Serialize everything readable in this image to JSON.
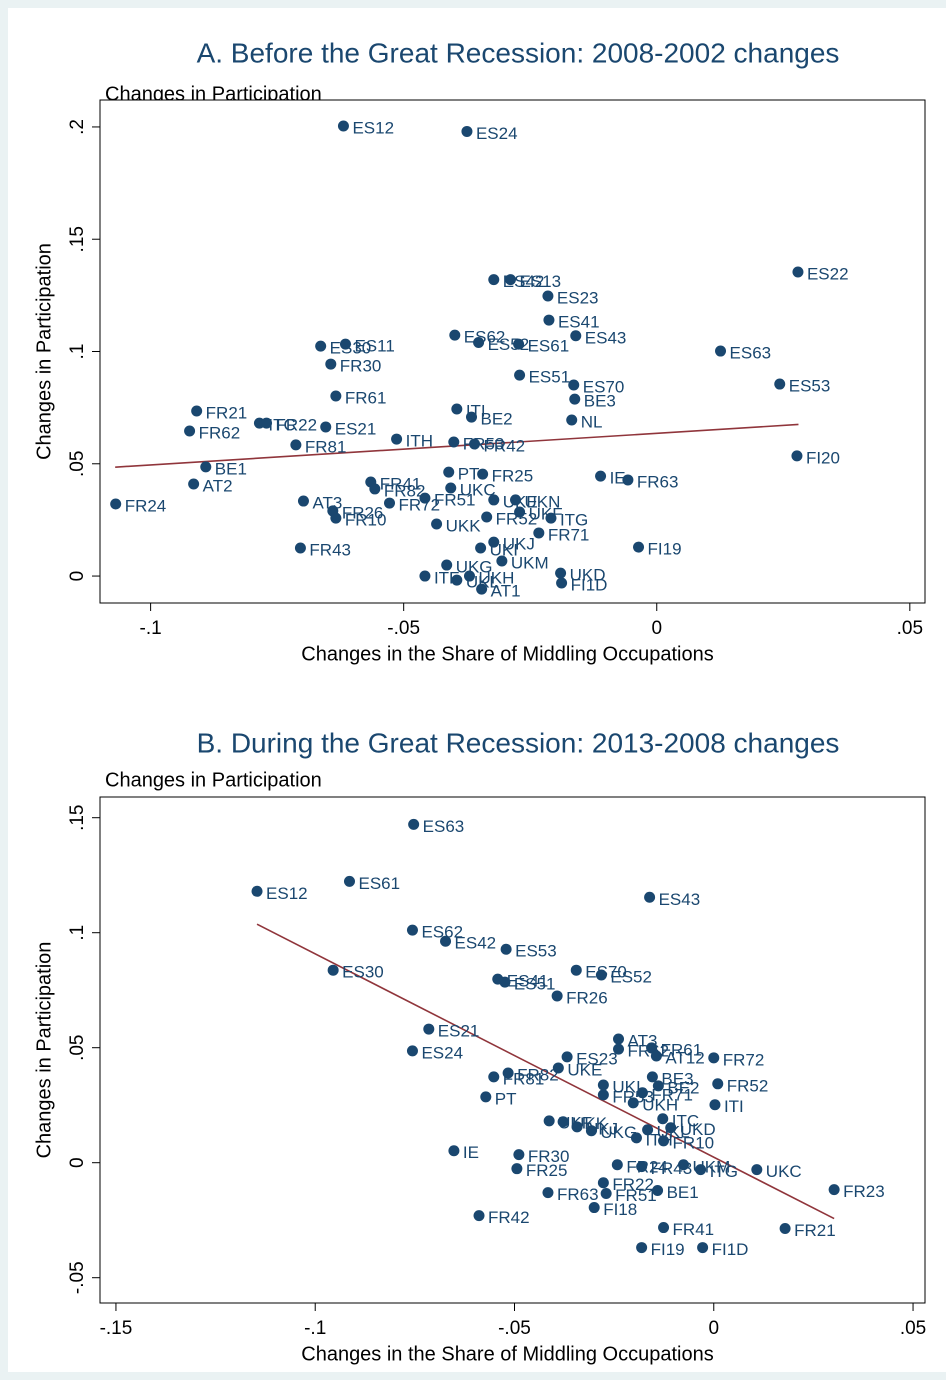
{
  "chart_data": [
    {
      "type": "scatter",
      "title": "A. Before the Great Recession: 2008-2002 changes",
      "subtitle": "Changes in Participation",
      "x_label": "Changes in the Share of Middling Occupations",
      "y_label": "Changes in Participation",
      "color": "#1a476f",
      "labels": [
        "ES12",
        "ES24",
        "ES22",
        "ES42",
        "ES13",
        "ES23",
        "ES41",
        "ES43",
        "ES62",
        "ES52",
        "ES61",
        "ES63",
        "ES30",
        "ES11",
        "FR30",
        "ES51",
        "ES70",
        "ES53",
        "BE3",
        "FR61",
        "FR21",
        "ITI",
        "BE2",
        "NL",
        "FR62",
        "ITC",
        "FR22",
        "ES21",
        "ITH",
        "FR81",
        "FR53",
        "FR42",
        "FI20",
        "BE1",
        "PT",
        "FR25",
        "IE",
        "FR63",
        "AT2",
        "FR41",
        "FR82",
        "UKC",
        "FR24",
        "AT3",
        "FR72",
        "FR51",
        "UKE",
        "UKN",
        "FR26",
        "FR10",
        "UKF",
        "FR52",
        "ITG",
        "UKK",
        "FR71",
        "UKJ",
        "UKI",
        "FR43",
        "FI19",
        "UKM",
        "UKG",
        "UKD",
        "ITF",
        "UKL",
        "UKH",
        "FI1D",
        "AT1"
      ],
      "x": [
        -0.0619,
        -0.0375,
        0.0279,
        -0.0322,
        -0.0289,
        -0.0215,
        -0.0213,
        -0.016,
        -0.0399,
        -0.0352,
        -0.0273,
        0.0126,
        -0.0664,
        -0.0615,
        -0.0644,
        -0.0271,
        -0.0164,
        0.0243,
        -0.0162,
        -0.0634,
        -0.0909,
        -0.0395,
        -0.0366,
        -0.0168,
        -0.0923,
        -0.0785,
        -0.0771,
        -0.0654,
        -0.0514,
        -0.0713,
        -0.0401,
        -0.036,
        0.0277,
        -0.0891,
        -0.0411,
        -0.0344,
        -0.0111,
        -0.0057,
        -0.0915,
        -0.0565,
        -0.0557,
        -0.0407,
        -0.1069,
        -0.0698,
        -0.0528,
        -0.0458,
        -0.0322,
        -0.0279,
        -0.064,
        -0.0634,
        -0.0271,
        -0.0336,
        -0.0209,
        -0.0435,
        -0.0233,
        -0.0322,
        -0.0348,
        -0.0704,
        -0.0036,
        -0.0306,
        -0.0415,
        -0.019,
        -0.0458,
        -0.0395,
        -0.037,
        -0.0188,
        -0.0346
      ],
      "values": [
        0.2004,
        0.198,
        0.1354,
        0.132,
        0.132,
        0.1247,
        0.114,
        0.107,
        0.1073,
        0.104,
        0.1033,
        0.1002,
        0.1024,
        0.1033,
        0.0944,
        0.0895,
        0.0851,
        0.0855,
        0.0788,
        0.0802,
        0.0735,
        0.0744,
        0.0708,
        0.0695,
        0.0646,
        0.0681,
        0.0681,
        0.0664,
        0.061,
        0.0584,
        0.0597,
        0.0588,
        0.0535,
        0.0486,
        0.0463,
        0.0454,
        0.0445,
        0.0428,
        0.041,
        0.0419,
        0.0388,
        0.0392,
        0.0321,
        0.0334,
        0.0325,
        0.0347,
        0.0339,
        0.0339,
        0.029,
        0.0258,
        0.0285,
        0.0263,
        0.0258,
        0.0232,
        0.0192,
        0.0151,
        0.0125,
        0.0125,
        0.0129,
        0.0067,
        0.0049,
        0.0013,
        0,
        -0.0018,
        0,
        -0.0031,
        -0.0058
      ],
      "fit_line": {
        "x": [
          -0.107,
          0.028
        ],
        "values": [
          0.0485,
          0.0675
        ],
        "color": "#90353b"
      },
      "xlim": [
        -0.11,
        0.053
      ],
      "ylim": [
        -0.012,
        0.212
      ],
      "xticks": [
        {
          "value": -0.1,
          "label": "-.1"
        },
        {
          "value": -0.05,
          "label": "-.05"
        },
        0,
        {
          "value": 0.05,
          "label": ".05"
        }
      ],
      "yticks": [
        0,
        {
          "value": 0.05,
          "label": ".05"
        },
        {
          "value": 0.1,
          "label": ".1"
        },
        {
          "value": 0.15,
          "label": ".15"
        },
        {
          "value": 0.2,
          "label": ".2"
        }
      ]
    },
    {
      "type": "scatter",
      "title": "B. During the Great Recession: 2013-2008 changes",
      "subtitle": "Changes in Participation",
      "x_label": "Changes in the Share of Middling Occupations",
      "y_label": "Changes in Participation",
      "color": "#1a476f",
      "labels": [
        "ES63",
        "ES12",
        "ES61",
        "ES43",
        "ES62",
        "ES42",
        "ES53",
        "ES30",
        "ES70",
        "ES52",
        "ES41",
        "ES51",
        "FR26",
        "ES21",
        "AT3",
        "FR61",
        "FR62",
        "AT12",
        "ES24",
        "FR72",
        "ES23",
        "UKE",
        "FR81",
        "FR82",
        "BE3",
        "FR52",
        "UKI",
        "BE2",
        "FR71",
        "FR53",
        "UKH",
        "ITI",
        "PT",
        "ITC",
        "UKF",
        "UKK",
        "UKJ",
        "UKD",
        "UKL",
        "UKG",
        "FR10",
        "ITH",
        "IE",
        "FR30",
        "FR24",
        "UKM",
        "FR43",
        "ITG",
        "UKC",
        "FR25",
        "FR22",
        "FR23",
        "BE1",
        "FR63",
        "FR51",
        "FI18",
        "FR42",
        "FR41",
        "FR21",
        "FI19",
        "FI1D"
      ],
      "x": [
        -0.0753,
        -0.1146,
        -0.0914,
        -0.0161,
        -0.0756,
        -0.0673,
        -0.0521,
        -0.0955,
        -0.0345,
        -0.0282,
        -0.0542,
        -0.0524,
        -0.0393,
        -0.0715,
        -0.0239,
        -0.0156,
        -0.0239,
        -0.0144,
        -0.0756,
        0,
        -0.0368,
        -0.039,
        -0.0552,
        -0.0516,
        -0.0154,
        0.001,
        -0.0277,
        -0.0139,
        -0.0179,
        -0.0277,
        -0.0202,
        0.0003,
        -0.0572,
        -0.0128,
        -0.0413,
        -0.0378,
        -0.0343,
        -0.0108,
        -0.0166,
        -0.0307,
        -0.0126,
        -0.0194,
        -0.0652,
        -0.0489,
        -0.0242,
        -0.0076,
        -0.0181,
        -0.0033,
        0.0108,
        -0.0494,
        -0.0277,
        0.0302,
        -0.0141,
        -0.0416,
        -0.027,
        -0.03,
        -0.0589,
        -0.0126,
        0.0179,
        -0.0181,
        -0.0028
      ],
      "values": [
        0.1471,
        0.118,
        0.1223,
        0.1154,
        0.1011,
        0.0963,
        0.0928,
        0.0837,
        0.0837,
        0.0816,
        0.0798,
        0.0785,
        0.0725,
        0.0581,
        0.0538,
        0.0499,
        0.0494,
        0.0464,
        0.0486,
        0.0456,
        0.046,
        0.0412,
        0.0373,
        0.039,
        0.0373,
        0.0343,
        0.0338,
        0.0334,
        0.0304,
        0.0295,
        0.026,
        0.0252,
        0.0286,
        0.0191,
        0.0182,
        0.0178,
        0.0156,
        0.0152,
        0.0143,
        0.0139,
        0.0095,
        0.0108,
        0.0052,
        0.0035,
        -0.0009,
        -0.0009,
        -0.0017,
        -0.003,
        -0.003,
        -0.0026,
        -0.0087,
        -0.0117,
        -0.0121,
        -0.013,
        -0.0134,
        -0.0195,
        -0.023,
        -0.0282,
        -0.0286,
        -0.0369,
        -0.0369
      ],
      "fit_line": {
        "x": [
          -0.1146,
          0.0302
        ],
        "values": [
          0.1037,
          -0.0243
        ],
        "color": "#90353b"
      },
      "xlim": [
        -0.154,
        0.053
      ],
      "ylim": [
        -0.061,
        0.159
      ],
      "xticks": [
        {
          "value": -0.15,
          "label": "-.15"
        },
        {
          "value": -0.1,
          "label": "-.1"
        },
        {
          "value": -0.05,
          "label": "-.05"
        },
        0,
        {
          "value": 0.05,
          "label": ".05"
        }
      ],
      "yticks": [
        {
          "value": -0.05,
          "label": "-.05"
        },
        0,
        {
          "value": 0.05,
          "label": ".05"
        },
        {
          "value": 0.1,
          "label": ".1"
        },
        {
          "value": 0.15,
          "label": ".15"
        }
      ]
    }
  ]
}
